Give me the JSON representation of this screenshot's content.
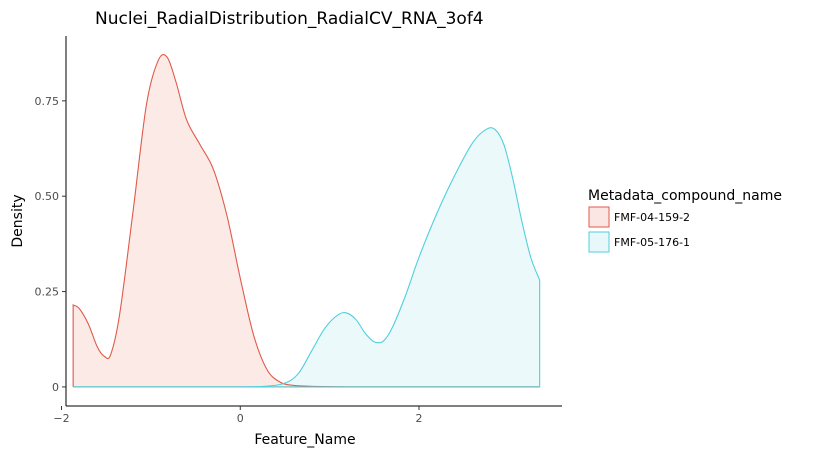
{
  "chart_data": {
    "type": "area",
    "title": "Nuclei_RadialDistribution_RadialCV_RNA_3of4",
    "xlabel": "Feature_Name",
    "ylabel": "Density",
    "xlim": [
      -1.95,
      3.6
    ],
    "ylim": [
      -0.05,
      0.92
    ],
    "x_ticks": [
      -2,
      0,
      2
    ],
    "x_tick_labels": [
      "−2",
      "0",
      "2"
    ],
    "y_ticks": [
      0,
      0.25,
      0.5,
      0.75
    ],
    "y_tick_labels": [
      "0",
      "0.25",
      "0.50",
      "0.75"
    ],
    "grid": false,
    "legend": {
      "title": "Metadata_compound_name",
      "position": "right"
    },
    "series": [
      {
        "name": "FMF-04-159-2",
        "line_color": "#e05a4a",
        "fill_color": "#fbe6e3",
        "x": [
          -1.87,
          -1.8,
          -1.7,
          -1.6,
          -1.52,
          -1.45,
          -1.35,
          -1.2,
          -1.05,
          -0.92,
          -0.82,
          -0.72,
          -0.6,
          -0.45,
          -0.3,
          -0.15,
          0.0,
          0.15,
          0.3,
          0.45,
          0.6,
          0.75,
          0.9,
          1.2,
          1.6,
          2.0,
          2.5,
          3.0,
          3.35
        ],
        "y": [
          0.215,
          0.205,
          0.165,
          0.105,
          0.08,
          0.085,
          0.19,
          0.46,
          0.74,
          0.855,
          0.865,
          0.8,
          0.7,
          0.635,
          0.57,
          0.45,
          0.285,
          0.135,
          0.045,
          0.012,
          0.004,
          0.002,
          0.001,
          0.0,
          0.0,
          0.0,
          0.0,
          0.0,
          0.0
        ]
      },
      {
        "name": "FMF-05-176-1",
        "line_color": "#4fd0dc",
        "fill_color": "#e8f8fa",
        "x": [
          -1.87,
          -1.0,
          0.0,
          0.3,
          0.5,
          0.65,
          0.8,
          0.95,
          1.1,
          1.2,
          1.3,
          1.4,
          1.5,
          1.6,
          1.7,
          1.85,
          2.0,
          2.2,
          2.4,
          2.6,
          2.75,
          2.85,
          2.95,
          3.05,
          3.15,
          3.25,
          3.35
        ],
        "y": [
          0.0,
          0.0,
          0.0,
          0.002,
          0.01,
          0.035,
          0.095,
          0.155,
          0.19,
          0.193,
          0.175,
          0.14,
          0.118,
          0.12,
          0.155,
          0.24,
          0.34,
          0.455,
          0.555,
          0.64,
          0.675,
          0.675,
          0.635,
          0.545,
          0.435,
          0.34,
          0.28
        ]
      }
    ]
  }
}
